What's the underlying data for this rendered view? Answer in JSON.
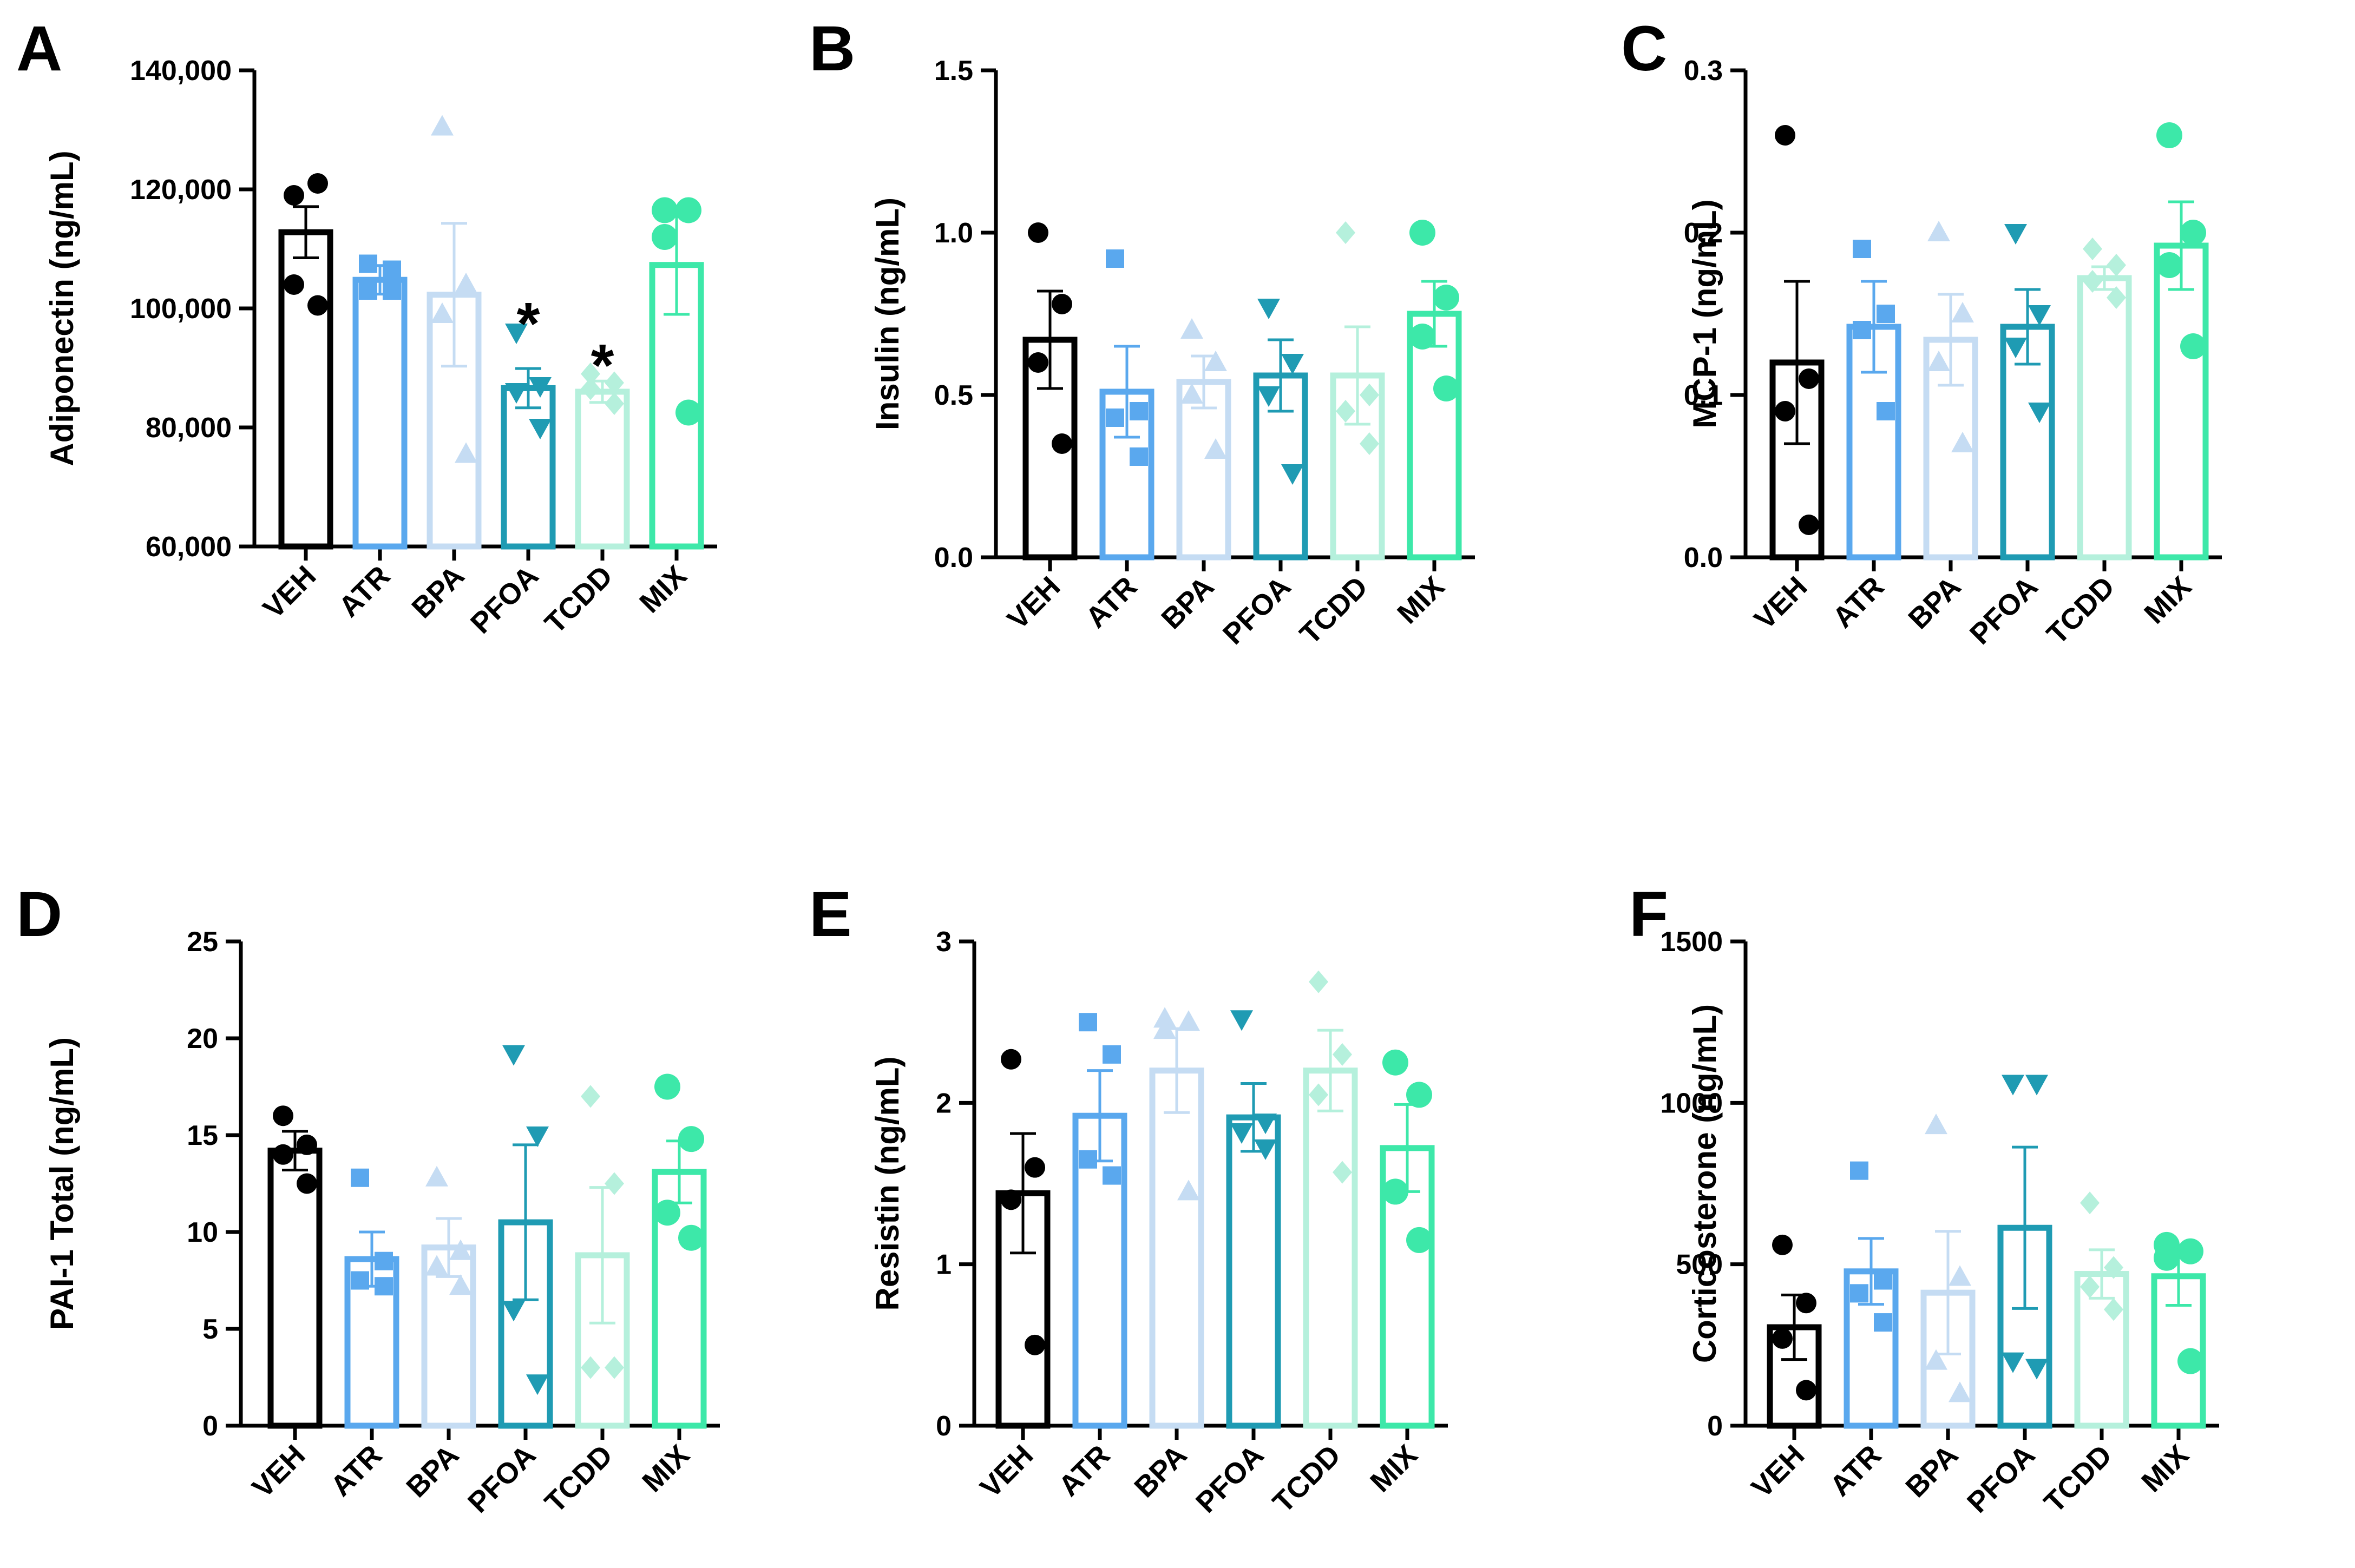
{
  "groups": [
    "VEH",
    "ATR",
    "BPA",
    "PFOA",
    "TCDD",
    "MIX"
  ],
  "group_colors": {
    "VEH": "#000000",
    "ATR": "#5aa8ee",
    "BPA": "#c5dcf3",
    "PFOA": "#1f9bb3",
    "TCDD": "#b5f0dc",
    "MIX": "#3de8a9"
  },
  "group_markers": {
    "VEH": "circle",
    "ATR": "square",
    "BPA": "triangle-up",
    "PFOA": "triangle-down",
    "TCDD": "diamond",
    "MIX": "circle-large"
  },
  "chart_data": [
    {
      "type": "bar",
      "panel": "A",
      "ylabel": "Adiponectin (ng/mL)",
      "categories": [
        "VEH",
        "ATR",
        "BPA",
        "PFOA",
        "TCDD",
        "MIX"
      ],
      "ylim": [
        60000,
        140000
      ],
      "yticks": [
        60000,
        80000,
        100000,
        120000,
        140000
      ],
      "ytick_labels": [
        "60,000",
        "80,000",
        "100,000",
        "120,000",
        "140,000"
      ],
      "means": [
        112800,
        104800,
        102300,
        86600,
        86000,
        107300
      ],
      "sem": [
        4300,
        2400,
        12000,
        3300,
        1800,
        8300
      ],
      "points": [
        [
          119000,
          121000,
          104000,
          100500
        ],
        [
          107500,
          106500,
          103000,
          103000
        ],
        [
          130500,
          104000,
          99000,
          75500
        ],
        [
          96000,
          87000,
          86000,
          80000
        ],
        [
          89000,
          87500,
          86500,
          84000
        ],
        [
          116500,
          116500,
          112000,
          82500
        ]
      ],
      "significance": [
        "",
        "",
        "",
        "*",
        "*",
        ""
      ]
    },
    {
      "type": "bar",
      "panel": "B",
      "ylabel": "Insulin (ng/mL)",
      "categories": [
        "VEH",
        "ATR",
        "BPA",
        "PFOA",
        "TCDD",
        "MIX"
      ],
      "ylim": [
        0,
        1.5
      ],
      "yticks": [
        0,
        0.5,
        1.0,
        1.5
      ],
      "ytick_labels": [
        "0.0",
        "0.5",
        "1.0",
        "1.5"
      ],
      "means": [
        0.67,
        0.51,
        0.54,
        0.56,
        0.56,
        0.75
      ],
      "sem": [
        0.15,
        0.14,
        0.08,
        0.11,
        0.15,
        0.1
      ],
      "points": [
        [
          1.0,
          0.78,
          0.6,
          0.35
        ],
        [
          0.92,
          0.45,
          0.43,
          0.31
        ],
        [
          0.7,
          0.6,
          0.5,
          0.33
        ],
        [
          0.77,
          0.6,
          0.5,
          0.26
        ],
        [
          1.0,
          0.5,
          0.45,
          0.35
        ],
        [
          1.0,
          0.8,
          0.68,
          0.52
        ]
      ],
      "significance": [
        "",
        "",
        "",
        "",
        "",
        ""
      ]
    },
    {
      "type": "bar",
      "panel": "C",
      "ylabel": "MCP-1 (ng/mL)",
      "categories": [
        "VEH",
        "ATR",
        "BPA",
        "PFOA",
        "TCDD",
        "MIX"
      ],
      "ylim": [
        0,
        0.3
      ],
      "yticks": [
        0,
        0.1,
        0.2,
        0.3
      ],
      "ytick_labels": [
        "0.0",
        "0.1",
        "0.2",
        "0.3"
      ],
      "means": [
        0.12,
        0.142,
        0.134,
        0.142,
        0.172,
        0.192
      ],
      "sem": [
        0.05,
        0.028,
        0.028,
        0.023,
        0.007,
        0.027
      ],
      "points": [
        [
          0.26,
          0.11,
          0.09,
          0.02
        ],
        [
          0.19,
          0.15,
          0.14,
          0.09
        ],
        [
          0.2,
          0.15,
          0.12,
          0.07
        ],
        [
          0.2,
          0.15,
          0.13,
          0.09
        ],
        [
          0.19,
          0.18,
          0.17,
          0.16
        ],
        [
          0.26,
          0.2,
          0.18,
          0.13
        ]
      ],
      "significance": [
        "",
        "",
        "",
        "",
        "",
        ""
      ]
    },
    {
      "type": "bar",
      "panel": "D",
      "ylabel": "PAI-1 Total (ng/mL)",
      "categories": [
        "VEH",
        "ATR",
        "BPA",
        "PFOA",
        "TCDD",
        "MIX"
      ],
      "ylim": [
        0,
        25
      ],
      "yticks": [
        0,
        5,
        10,
        15,
        20,
        25
      ],
      "ytick_labels": [
        "0",
        "5",
        "10",
        "15",
        "20",
        "25"
      ],
      "means": [
        14.2,
        8.6,
        9.2,
        10.5,
        8.8,
        13.1
      ],
      "sem": [
        1.0,
        1.4,
        1.5,
        4.0,
        3.5,
        1.6
      ],
      "points": [
        [
          16.0,
          14.5,
          14.0,
          12.5
        ],
        [
          12.8,
          8.5,
          7.5,
          7.2
        ],
        [
          12.8,
          9.0,
          8.2,
          7.2
        ],
        [
          19.2,
          15.0,
          6.0,
          2.2
        ],
        [
          17.0,
          12.5,
          3.0,
          3.0
        ],
        [
          17.5,
          14.8,
          11.0,
          9.7
        ]
      ],
      "significance": [
        "",
        "",
        "",
        "",
        "",
        ""
      ]
    },
    {
      "type": "bar",
      "panel": "E",
      "ylabel": "Resistin (ng/mL)",
      "categories": [
        "VEH",
        "ATR",
        "BPA",
        "PFOA",
        "TCDD",
        "MIX"
      ],
      "ylim": [
        0,
        3
      ],
      "yticks": [
        0,
        1,
        2,
        3
      ],
      "ytick_labels": [
        "0",
        "1",
        "2",
        "3"
      ],
      "means": [
        1.44,
        1.92,
        2.2,
        1.91,
        2.2,
        1.72
      ],
      "sem": [
        0.37,
        0.28,
        0.26,
        0.21,
        0.25,
        0.27
      ],
      "points": [
        [
          2.27,
          1.6,
          1.4,
          0.5
        ],
        [
          2.5,
          2.3,
          1.65,
          1.55
        ],
        [
          2.52,
          2.5,
          2.45,
          1.45
        ],
        [
          2.52,
          1.88,
          1.82,
          1.72
        ],
        [
          2.75,
          2.3,
          2.05,
          1.57
        ],
        [
          2.25,
          2.05,
          1.45,
          1.15
        ]
      ],
      "significance": [
        "",
        "",
        "",
        "",
        "",
        ""
      ]
    },
    {
      "type": "bar",
      "panel": "F",
      "ylabel": "Corticosterone (ng/mL)",
      "categories": [
        "VEH",
        "ATR",
        "BPA",
        "PFOA",
        "TCDD",
        "MIX"
      ],
      "ylim": [
        0,
        1500
      ],
      "yticks": [
        0,
        500,
        1000,
        1500
      ],
      "ytick_labels": [
        "0",
        "500",
        "1000",
        "1500"
      ],
      "means": [
        305,
        478,
        412,
        613,
        470,
        463
      ],
      "sem": [
        100,
        102,
        190,
        250,
        75,
        90
      ],
      "points": [
        [
          560,
          380,
          270,
          110
        ],
        [
          790,
          450,
          410,
          320
        ],
        [
          930,
          460,
          200,
          100
        ],
        [
          1060,
          1060,
          200,
          180
        ],
        [
          690,
          490,
          430,
          360
        ],
        [
          560,
          540,
          520,
          200
        ]
      ],
      "significance": [
        "",
        "",
        "",
        "",
        "",
        ""
      ]
    }
  ]
}
